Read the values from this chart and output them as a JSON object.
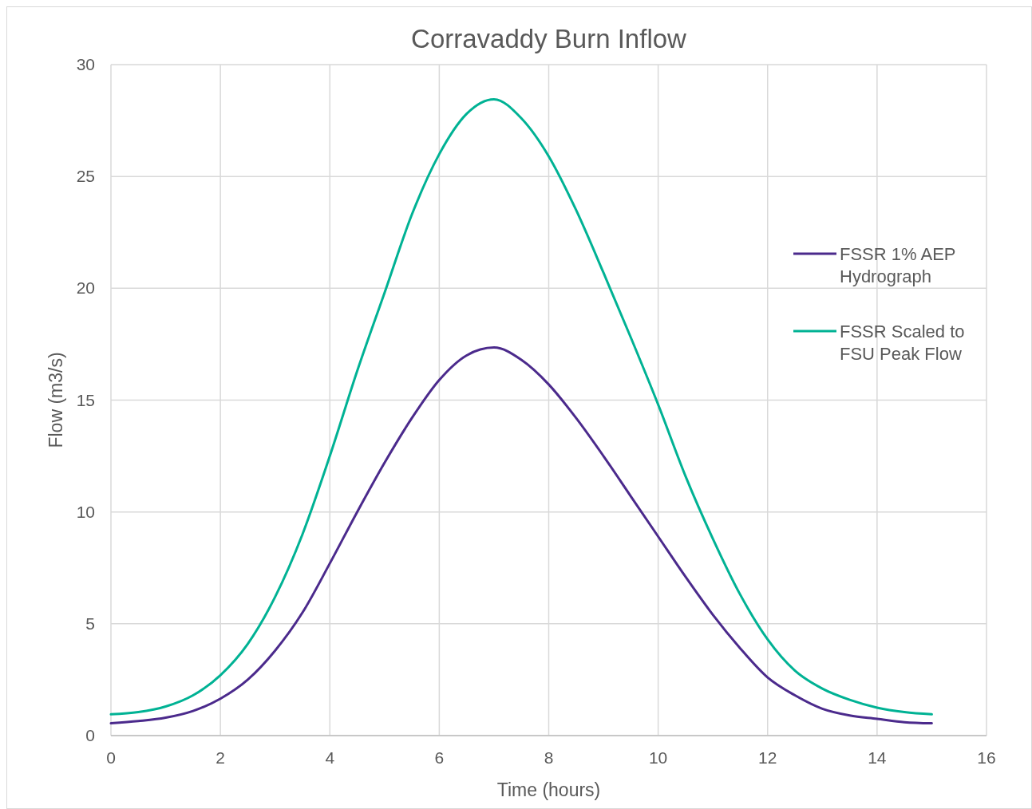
{
  "chart_data": {
    "type": "line",
    "title": "Corravaddy Burn Inflow",
    "xlabel": "Time (hours)",
    "ylabel": "Flow (m3/s)",
    "x": [
      0,
      0.5,
      1,
      1.5,
      2,
      2.5,
      3,
      3.5,
      4,
      4.5,
      5,
      5.5,
      6,
      6.5,
      7,
      7.5,
      8,
      8.5,
      9,
      9.5,
      10,
      10.5,
      11,
      11.5,
      12,
      12.5,
      13,
      13.5,
      14,
      14.5,
      15
    ],
    "series": [
      {
        "name": "FSSR 1% AEP Hydrograph",
        "color": "#4b2a8c",
        "values": [
          0.55,
          0.65,
          0.8,
          1.1,
          1.65,
          2.5,
          3.8,
          5.5,
          7.7,
          10.0,
          12.2,
          14.2,
          15.9,
          17.0,
          17.35,
          16.8,
          15.7,
          14.2,
          12.5,
          10.7,
          8.9,
          7.1,
          5.4,
          3.9,
          2.6,
          1.8,
          1.2,
          0.9,
          0.75,
          0.6,
          0.55
        ]
      },
      {
        "name": "FSSR Scaled to FSU Peak Flow",
        "color": "#00b294",
        "values": [
          0.95,
          1.05,
          1.3,
          1.8,
          2.7,
          4.1,
          6.2,
          9.0,
          12.5,
          16.3,
          19.8,
          23.3,
          26.0,
          27.8,
          28.45,
          27.6,
          25.9,
          23.5,
          20.7,
          17.8,
          14.8,
          11.6,
          8.8,
          6.3,
          4.3,
          2.9,
          2.1,
          1.6,
          1.25,
          1.05,
          0.95
        ]
      }
    ],
    "xlim": [
      0,
      16
    ],
    "xticks": [
      0,
      2,
      4,
      6,
      8,
      10,
      12,
      14,
      16
    ],
    "ylim": [
      0,
      30
    ],
    "yticks": [
      0,
      5,
      10,
      15,
      20,
      25,
      30
    ],
    "grid": true,
    "legend": "right",
    "marker": "none",
    "line_style": "solid"
  }
}
